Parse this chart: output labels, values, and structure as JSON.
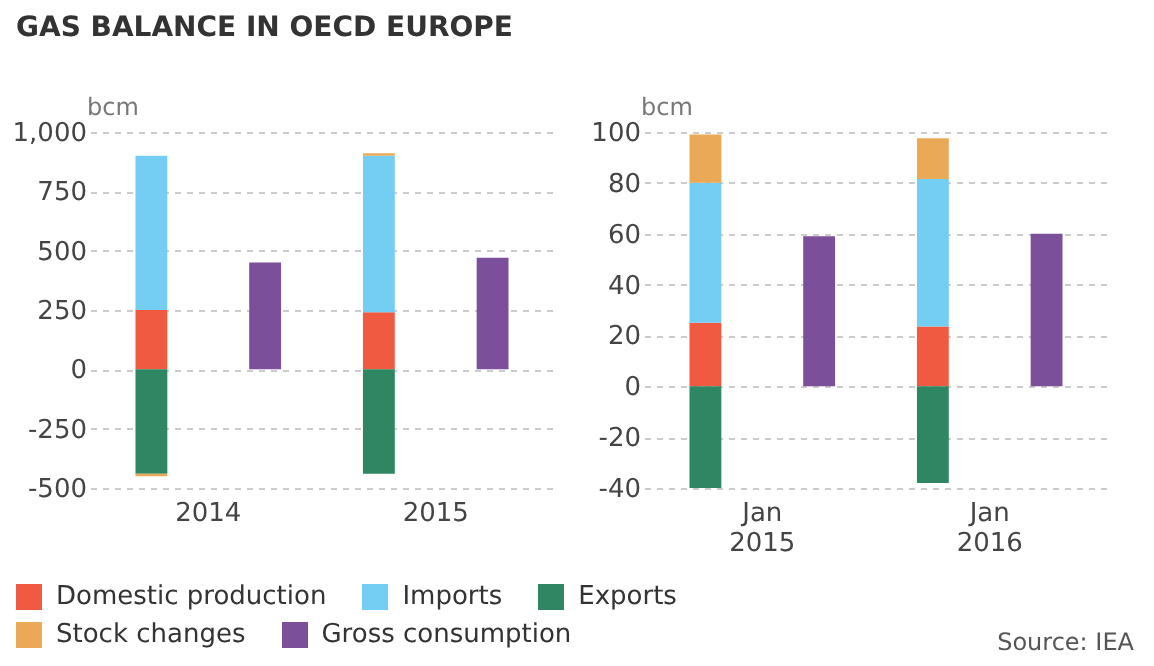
{
  "chart_data": [
    {
      "type": "bar",
      "title": "GAS BALANCE IN OECD EUROPE",
      "ylabel": "bcm",
      "categories": [
        "2014",
        null,
        "2015",
        null
      ],
      "stacked": true,
      "legend": "bottom",
      "grid": "y",
      "ylim": [
        -500,
        1000
      ],
      "yticks": [
        {
          "value": -500,
          "label": "-500"
        },
        {
          "value": -250,
          "label": "-250"
        },
        0,
        250,
        500,
        750,
        {
          "value": 1000,
          "label": "1,000"
        }
      ],
      "series": [
        {
          "name": "Domestic production",
          "color": "#f05a40",
          "values": [
            250,
            null,
            240,
            null
          ]
        },
        {
          "name": "Imports",
          "color": "#74cdf3",
          "values": [
            650,
            null,
            660,
            null
          ]
        },
        {
          "name": "Exports",
          "color": "#2e8662",
          "values": [
            -440,
            null,
            -440,
            null
          ]
        },
        {
          "name": "Stock changes",
          "color": "#eaa957",
          "values": [
            -10,
            null,
            10,
            null
          ]
        },
        {
          "name": "Gross consumption",
          "color": "#7b4f9a",
          "values": [
            null,
            450,
            null,
            470
          ]
        }
      ]
    },
    {
      "type": "bar",
      "ylabel": "bcm",
      "categories": [
        "Jan 2015",
        null,
        "Jan 2016",
        null
      ],
      "stacked": true,
      "legend": "bottom",
      "grid": "y",
      "ylim": [
        -40,
        100
      ],
      "yticks": [
        -40,
        -20,
        0,
        20,
        40,
        60,
        80,
        100
      ],
      "annotations": [
        "Source: IEA"
      ],
      "series": [
        {
          "name": "Domestic production",
          "color": "#f05a40",
          "values": [
            25,
            null,
            23.5,
            null
          ]
        },
        {
          "name": "Imports",
          "color": "#74cdf3",
          "values": [
            55,
            null,
            58,
            null
          ]
        },
        {
          "name": "Exports",
          "color": "#2e8662",
          "values": [
            -40,
            null,
            -38,
            null
          ]
        },
        {
          "name": "Stock changes",
          "color": "#eaa957",
          "values": [
            19,
            null,
            16,
            null
          ]
        },
        {
          "name": "Gross consumption",
          "color": "#7b4f9a",
          "values": [
            null,
            59,
            null,
            60
          ]
        }
      ]
    }
  ]
}
